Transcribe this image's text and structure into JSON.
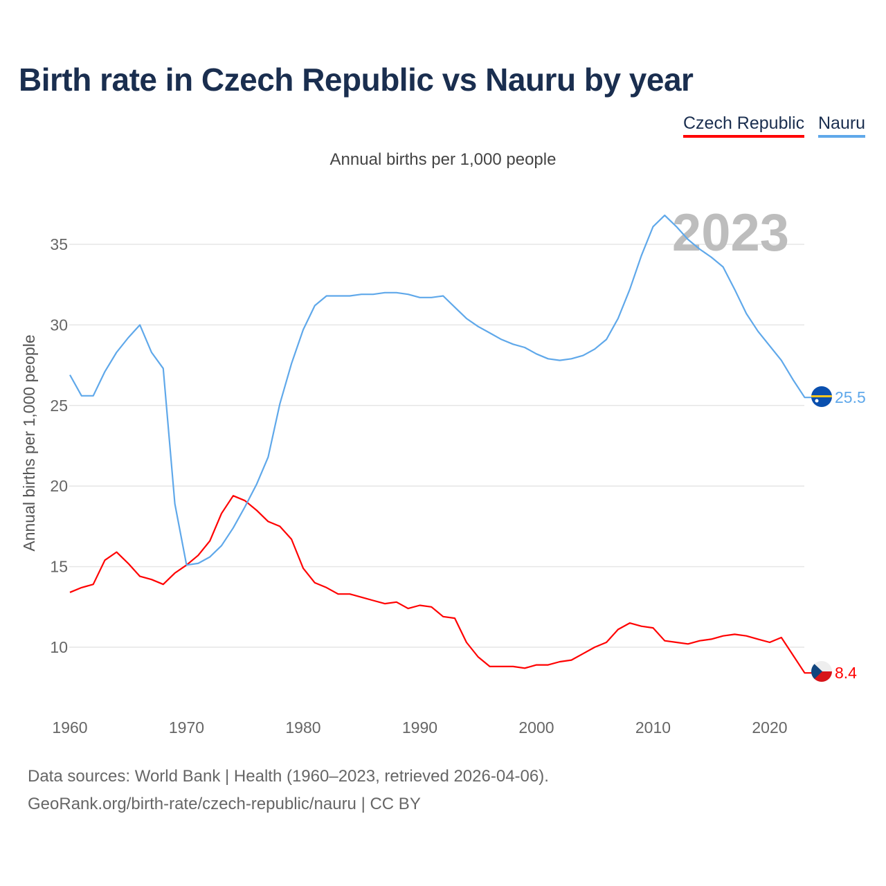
{
  "title": "Birth rate in Czech Republic vs Nauru by year",
  "legend": [
    "Czech Republic",
    "Nauru"
  ],
  "subtitle": "Annual births per 1,000 people",
  "year_watermark": "2023",
  "footer": {
    "line1": "Data sources: World Bank | Health (1960–2023, retrieved 2026-04-06).",
    "line2": "GeoRank.org/birth-rate/czech-republic/nauru | CC BY"
  },
  "chart_data": {
    "type": "line",
    "title": "Birth rate in Czech Republic vs Nauru by year",
    "xlabel": "",
    "ylabel": "Annual births per 1,000 people",
    "xlim": [
      1960,
      2023
    ],
    "ylim": [
      7,
      38
    ],
    "xticks": [
      1960,
      1970,
      1980,
      1990,
      2000,
      2010,
      2020
    ],
    "yticks": [
      10,
      15,
      20,
      25,
      30,
      35
    ],
    "grid": true,
    "legend_position": "top-right",
    "x": [
      1960,
      1961,
      1962,
      1963,
      1964,
      1965,
      1966,
      1967,
      1968,
      1969,
      1970,
      1971,
      1972,
      1973,
      1974,
      1975,
      1976,
      1977,
      1978,
      1979,
      1980,
      1981,
      1982,
      1983,
      1984,
      1985,
      1986,
      1987,
      1988,
      1989,
      1990,
      1991,
      1992,
      1993,
      1994,
      1995,
      1996,
      1997,
      1998,
      1999,
      2000,
      2001,
      2002,
      2003,
      2004,
      2005,
      2006,
      2007,
      2008,
      2009,
      2010,
      2011,
      2012,
      2013,
      2014,
      2015,
      2016,
      2017,
      2018,
      2019,
      2020,
      2021,
      2022,
      2023
    ],
    "series": [
      {
        "name": "Czech Republic",
        "color": "#ff0000",
        "end_label": "8.4",
        "values": [
          13.4,
          13.7,
          13.9,
          15.4,
          15.9,
          15.2,
          14.4,
          14.2,
          13.9,
          14.6,
          15.1,
          15.7,
          16.6,
          18.3,
          19.4,
          19.1,
          18.5,
          17.8,
          17.5,
          16.7,
          14.9,
          14.0,
          13.7,
          13.3,
          13.3,
          13.1,
          12.9,
          12.7,
          12.8,
          12.4,
          12.6,
          12.5,
          11.9,
          11.8,
          10.3,
          9.4,
          8.8,
          8.8,
          8.8,
          8.7,
          8.9,
          8.9,
          9.1,
          9.2,
          9.6,
          10.0,
          10.3,
          11.1,
          11.5,
          11.3,
          11.2,
          10.4,
          10.3,
          10.2,
          10.4,
          10.5,
          10.7,
          10.8,
          10.7,
          10.5,
          10.3,
          10.6,
          9.5,
          8.4
        ]
      },
      {
        "name": "Nauru",
        "color": "#5fa8ea",
        "end_label": "25.5",
        "values": [
          26.9,
          25.6,
          25.6,
          27.1,
          28.3,
          29.2,
          30.0,
          28.3,
          27.3,
          18.9,
          15.1,
          15.2,
          15.6,
          16.3,
          17.4,
          18.7,
          20.1,
          21.8,
          25.1,
          27.6,
          29.7,
          31.2,
          31.8,
          31.8,
          31.8,
          31.9,
          31.9,
          32.0,
          32.0,
          31.9,
          31.7,
          31.7,
          31.8,
          31.1,
          30.4,
          29.9,
          29.5,
          29.1,
          28.8,
          28.6,
          28.2,
          27.9,
          27.8,
          27.9,
          28.1,
          28.5,
          29.1,
          30.4,
          32.2,
          34.3,
          36.1,
          36.8,
          36.1,
          35.3,
          34.7,
          34.2,
          33.6,
          32.2,
          30.7,
          29.6,
          28.7,
          27.8,
          26.6,
          25.5
        ]
      }
    ]
  }
}
